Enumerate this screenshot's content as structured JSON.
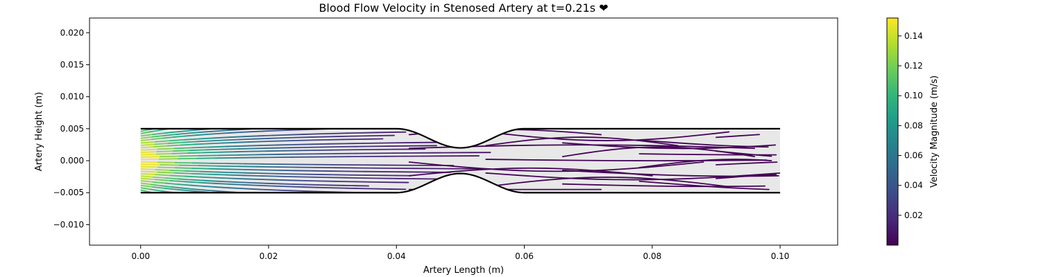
{
  "chart_data": {
    "type": "streamplot",
    "title": "Blood Flow Velocity in Stenosed Artery at t=0.21s ❤",
    "xlabel": "Artery Length (m)",
    "ylabel": "Artery Height (m)",
    "xlim": [
      -0.008,
      0.109
    ],
    "ylim": [
      -0.0132,
      0.0223
    ],
    "xticks": [
      0.0,
      0.02,
      0.04,
      0.06,
      0.08,
      0.1
    ],
    "xtick_labels": [
      "0.00",
      "0.02",
      "0.04",
      "0.06",
      "0.08",
      "0.10"
    ],
    "yticks": [
      0.02,
      0.015,
      0.01,
      0.005,
      0.0,
      -0.005,
      -0.01
    ],
    "ytick_labels": [
      "0.020",
      "0.015",
      "0.010",
      "0.005",
      "0.000",
      "−0.005",
      "−0.010"
    ],
    "artery": {
      "x_start": 0.0,
      "x_end": 0.1,
      "radius": 0.005,
      "stenosis_center": 0.05,
      "stenosis_half_length": 0.01,
      "throat_radius": 0.002
    },
    "velocity_profile": {
      "inlet_max": 0.15,
      "decay_length": 0.018,
      "min": 0.001
    },
    "colorbar": {
      "label": "Velocity Magnitude (m/s)",
      "range": [
        0.0,
        0.152
      ],
      "ticks": [
        0.02,
        0.04,
        0.06,
        0.08,
        0.1,
        0.12,
        0.14
      ],
      "tick_labels": [
        "0.02",
        "0.04",
        "0.06",
        "0.08",
        "0.10",
        "0.12",
        "0.14"
      ],
      "colormap": "viridis"
    },
    "colors": {
      "vessel_fill": "#e8e8e8",
      "vessel_wall": "#000000",
      "axes_frame": "#000000"
    }
  }
}
